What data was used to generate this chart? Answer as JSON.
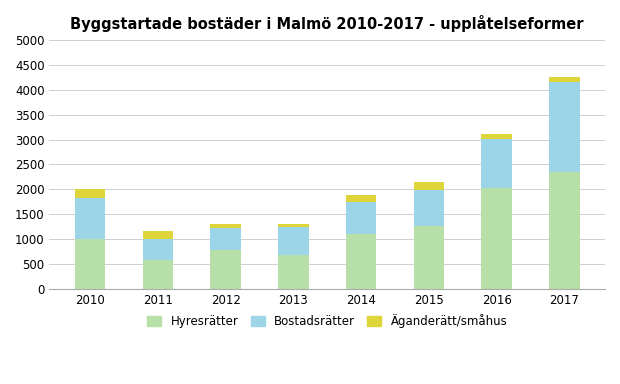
{
  "years": [
    "2010",
    "2011",
    "2012",
    "2013",
    "2014",
    "2015",
    "2016",
    "2017"
  ],
  "hyresratter": [
    1000,
    580,
    790,
    690,
    1100,
    1270,
    2020,
    2350
  ],
  "bostadsratter": [
    820,
    420,
    440,
    555,
    640,
    720,
    990,
    1800
  ],
  "aganderatt": [
    185,
    155,
    75,
    65,
    155,
    160,
    110,
    100
  ],
  "color_hyresratter": "#b7dfa8",
  "color_bostadsratter": "#9dd5e8",
  "color_aganderatt": "#ddd53a",
  "title": "Byggstartade bostäder i Malmö 2010-2017 - upplåtelseformer",
  "ylim": [
    0,
    5000
  ],
  "yticks": [
    0,
    500,
    1000,
    1500,
    2000,
    2500,
    3000,
    3500,
    4000,
    4500,
    5000
  ],
  "legend_hyresratter": "Hyresrätter",
  "legend_bostadsratter": "Bostadsrätter",
  "legend_aganderatt": "Äganderätt/småhus",
  "title_fontsize": 10.5,
  "tick_fontsize": 8.5,
  "legend_fontsize": 8.5,
  "bar_width": 0.45,
  "background_color": "#ffffff",
  "grid_color": "#c8c8c8",
  "spine_color": "#aaaaaa"
}
